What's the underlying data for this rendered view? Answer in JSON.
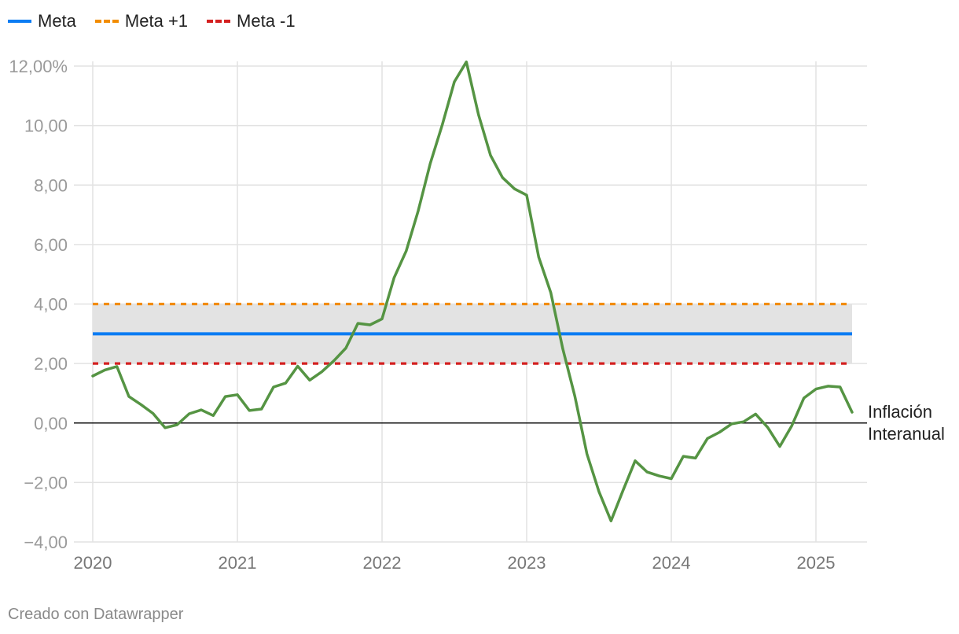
{
  "legend": [
    {
      "label": "Meta",
      "color": "#0b7cf3",
      "style": "solid"
    },
    {
      "label": "Meta +1",
      "color": "#f28c00",
      "style": "dashed"
    },
    {
      "label": "Meta -1",
      "color": "#d42020",
      "style": "dashed"
    }
  ],
  "credit": "Creado con Datawrapper",
  "chart_data": {
    "type": "line",
    "x_ticks": [
      "2020",
      "2021",
      "2022",
      "2023",
      "2024",
      "2025"
    ],
    "y_ticks": [
      "12,00%",
      "10,00",
      "8,00",
      "6,00",
      "4,00",
      "2,00",
      "0,00",
      "−2,00",
      "−4,00"
    ],
    "y_tick_values": [
      12,
      10,
      8,
      6,
      4,
      2,
      0,
      -2,
      -4
    ],
    "xlim": [
      "2020-01",
      "2025-05"
    ],
    "ylim": [
      -4,
      12
    ],
    "grid": true,
    "legend_position": "top-left",
    "band": {
      "from": 2,
      "to": 4,
      "color": "#e3e3e3"
    },
    "reference_lines": [
      {
        "name": "Meta",
        "value": 3,
        "color": "#0b7cf3",
        "style": "solid"
      },
      {
        "name": "Meta +1",
        "value": 4,
        "color": "#f28c00",
        "style": "dashed"
      },
      {
        "name": "Meta -1",
        "value": 2,
        "color": "#d42020",
        "style": "dashed"
      }
    ],
    "zero_line_color": "#111111",
    "series": [
      {
        "name": "Inflación Interanual",
        "label_lines": [
          "Inflación",
          "Interanual"
        ],
        "color": "#559443",
        "x": [
          "2020-01",
          "2020-02",
          "2020-03",
          "2020-04",
          "2020-05",
          "2020-06",
          "2020-07",
          "2020-08",
          "2020-09",
          "2020-10",
          "2020-11",
          "2020-12",
          "2021-01",
          "2021-02",
          "2021-03",
          "2021-04",
          "2021-05",
          "2021-06",
          "2021-07",
          "2021-08",
          "2021-09",
          "2021-10",
          "2021-11",
          "2021-12",
          "2022-01",
          "2022-02",
          "2022-03",
          "2022-04",
          "2022-05",
          "2022-06",
          "2022-07",
          "2022-08",
          "2022-09",
          "2022-10",
          "2022-11",
          "2022-12",
          "2023-01",
          "2023-02",
          "2023-03",
          "2023-04",
          "2023-05",
          "2023-06",
          "2023-07",
          "2023-08",
          "2023-09",
          "2023-10",
          "2023-11",
          "2023-12",
          "2024-01",
          "2024-02",
          "2024-03",
          "2024-04",
          "2024-05",
          "2024-06",
          "2024-07",
          "2024-08",
          "2024-09",
          "2024-10",
          "2024-11",
          "2024-12",
          "2025-01",
          "2025-02",
          "2025-03",
          "2025-04"
        ],
        "values": [
          1.58,
          1.78,
          1.9,
          0.89,
          0.62,
          0.32,
          -0.16,
          -0.06,
          0.31,
          0.44,
          0.25,
          0.89,
          0.95,
          0.42,
          0.47,
          1.21,
          1.34,
          1.91,
          1.44,
          1.72,
          2.09,
          2.52,
          3.35,
          3.3,
          3.5,
          4.88,
          5.78,
          7.13,
          8.72,
          10.03,
          11.47,
          12.14,
          10.37,
          9.0,
          8.25,
          7.87,
          7.66,
          5.58,
          4.38,
          2.49,
          0.9,
          -1.04,
          -2.31,
          -3.29,
          -2.26,
          -1.27,
          -1.65,
          -1.78,
          -1.87,
          -1.12,
          -1.18,
          -0.52,
          -0.31,
          -0.03,
          0.04,
          0.3,
          -0.15,
          -0.79,
          -0.09,
          0.84,
          1.14,
          1.24,
          1.21,
          0.36
        ]
      }
    ]
  }
}
